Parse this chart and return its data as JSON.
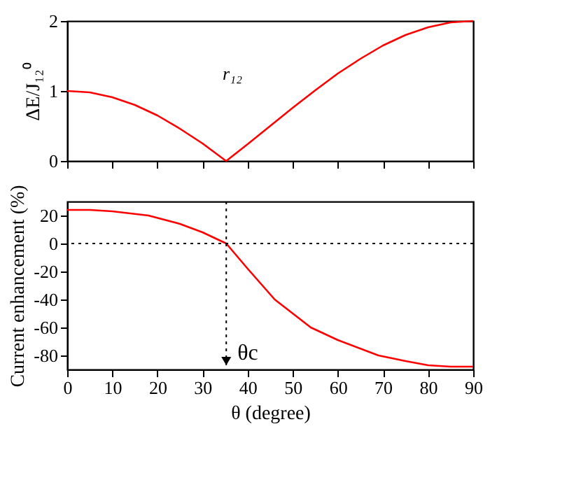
{
  "chart_data": [
    {
      "type": "line",
      "ylabel": "ΔE/J₁₂⁰",
      "x": [
        0,
        5,
        10,
        15,
        20,
        25,
        30,
        35,
        35.26,
        40,
        45,
        50,
        55,
        60,
        65,
        70,
        75,
        80,
        85,
        90
      ],
      "series": [
        {
          "color": "#ff0000",
          "values": [
            1,
            0.98,
            0.91,
            0.8,
            0.65,
            0.46,
            0.25,
            0.01,
            0,
            0.24,
            0.5,
            0.76,
            1.01,
            1.25,
            1.46,
            1.65,
            1.8,
            1.91,
            1.98,
            2
          ]
        }
      ],
      "xlim": [
        0,
        90
      ],
      "xticks": [
        0,
        10,
        20,
        30,
        40,
        50,
        60,
        70,
        80,
        90
      ],
      "ylim": [
        0,
        2
      ],
      "yticks": [
        0,
        1,
        2
      ],
      "tick_labels": "y",
      "grid": false,
      "marker": "none",
      "line_style": "solid",
      "annotations": [
        "r₁₂"
      ]
    },
    {
      "type": "line",
      "xlabel": "θ (degree)",
      "ylabel": "Current enhancement (%)",
      "x": [
        0,
        5,
        10,
        18,
        25,
        30,
        35.26,
        40,
        46,
        54,
        60,
        69,
        75,
        80,
        85,
        90
      ],
      "series": [
        {
          "color": "#ff0000",
          "values": [
            24,
            24,
            23,
            20,
            14,
            8,
            0,
            -18,
            -40,
            -60,
            -69,
            -80,
            -84,
            -87,
            -88,
            -88
          ]
        }
      ],
      "xlim": [
        0,
        90
      ],
      "xticks": [
        0,
        10,
        20,
        30,
        40,
        50,
        60,
        70,
        80,
        90
      ],
      "ylim": [
        -90,
        30
      ],
      "yticks": [
        -80,
        -60,
        -40,
        -20,
        0,
        20
      ],
      "grid": false,
      "marker": "none",
      "line_style": "solid",
      "ref_lines": [
        {
          "axis": "x",
          "value": 35.26,
          "color": "#000000",
          "line_style": "dotted"
        },
        {
          "axis": "y",
          "value": 0,
          "color": "#000000",
          "line_style": "dotted"
        }
      ],
      "annotations": [
        {
          "text": "θc",
          "x": 35.26,
          "y": -84
        }
      ]
    }
  ]
}
